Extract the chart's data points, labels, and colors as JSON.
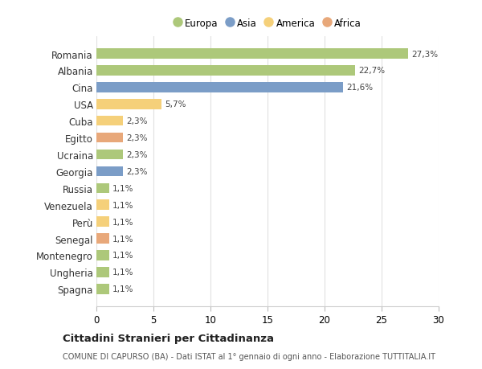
{
  "countries": [
    "Romania",
    "Albania",
    "Cina",
    "USA",
    "Cuba",
    "Egitto",
    "Ucraina",
    "Georgia",
    "Russia",
    "Venezuela",
    "Perù",
    "Senegal",
    "Montenegro",
    "Ungheria",
    "Spagna"
  ],
  "values": [
    27.3,
    22.7,
    21.6,
    5.7,
    2.3,
    2.3,
    2.3,
    2.3,
    1.1,
    1.1,
    1.1,
    1.1,
    1.1,
    1.1,
    1.1
  ],
  "labels": [
    "27,3%",
    "22,7%",
    "21,6%",
    "5,7%",
    "2,3%",
    "2,3%",
    "2,3%",
    "2,3%",
    "1,1%",
    "1,1%",
    "1,1%",
    "1,1%",
    "1,1%",
    "1,1%",
    "1,1%"
  ],
  "colors": [
    "#adc87a",
    "#adc87a",
    "#7b9dc7",
    "#f5d07a",
    "#f5d07a",
    "#e8a87a",
    "#adc87a",
    "#7b9dc7",
    "#adc87a",
    "#f5d07a",
    "#f5d07a",
    "#e8a87a",
    "#adc87a",
    "#adc87a",
    "#adc87a"
  ],
  "legend_labels": [
    "Europa",
    "Asia",
    "America",
    "Africa"
  ],
  "legend_colors": [
    "#adc87a",
    "#7b9dc7",
    "#f5d07a",
    "#e8a87a"
  ],
  "title": "Cittadini Stranieri per Cittadinanza",
  "subtitle": "COMUNE DI CAPURSO (BA) - Dati ISTAT al 1° gennaio di ogni anno - Elaborazione TUTTITALIA.IT",
  "xlim": [
    0,
    30
  ],
  "xticks": [
    0,
    5,
    10,
    15,
    20,
    25,
    30
  ],
  "background_color": "#ffffff",
  "grid_color": "#e0e0e0"
}
